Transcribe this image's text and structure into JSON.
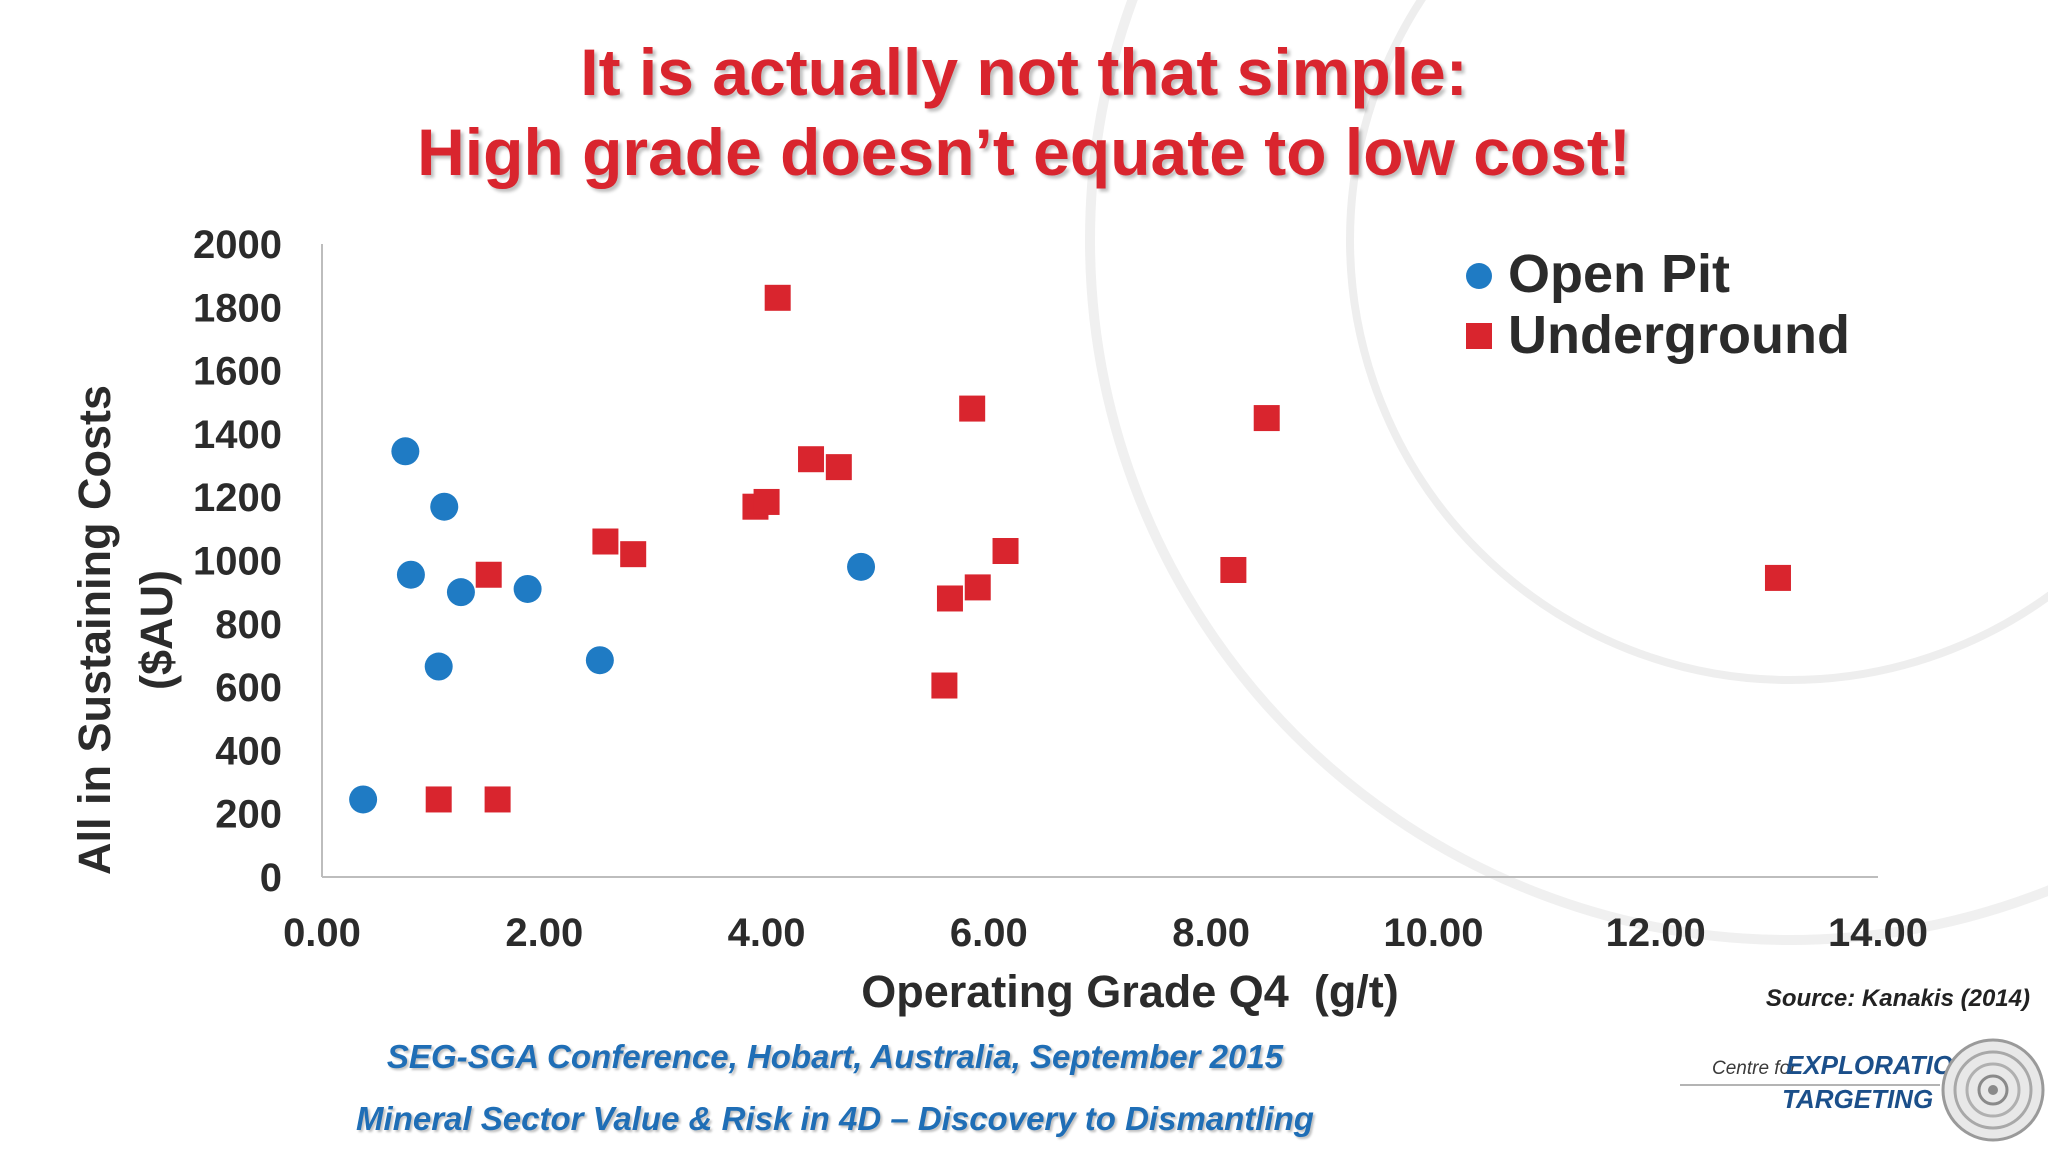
{
  "slide": {
    "title_line1": "It is actually not that simple:",
    "title_line2": "High grade doesn’t equate to low cost!",
    "source": "Source: Kanakis (2014)",
    "footer_line1": "SEG-SGA Conference, Hobart, Australia, September 2015",
    "footer_line2": "Mineral Sector Value & Risk in 4D – Discovery to Dismantling",
    "logo": {
      "centre_for": "Centre for",
      "exploration": "EXPLORATION",
      "targeting": "TARGETING"
    },
    "colors": {
      "title": "#d9252e",
      "footer": "#1f6eb6",
      "open_pit": "#1f7bc4",
      "underground": "#d9252e"
    }
  },
  "chart_data": {
    "type": "scatter",
    "title": "",
    "xlabel": "Operating Grade Q4  (g/t)",
    "ylabel_line1": "All in Sustaining Costs",
    "ylabel_line2": "($AU)",
    "xlim": [
      0,
      14
    ],
    "ylim": [
      0,
      2000
    ],
    "x_ticks": [
      "0.00",
      "2.00",
      "4.00",
      "6.00",
      "8.00",
      "10.00",
      "12.00",
      "14.00"
    ],
    "y_ticks": [
      "0",
      "200",
      "400",
      "600",
      "800",
      "1000",
      "1200",
      "1400",
      "1600",
      "1800",
      "2000"
    ],
    "grid": false,
    "legend_position": "top-right",
    "series": [
      {
        "name": "Open Pit",
        "marker": "circle",
        "color": "#1f7bc4",
        "points": [
          [
            0.37,
            245
          ],
          [
            0.75,
            1345
          ],
          [
            0.8,
            955
          ],
          [
            1.05,
            665
          ],
          [
            1.1,
            1170
          ],
          [
            1.25,
            900
          ],
          [
            1.85,
            910
          ],
          [
            2.5,
            685
          ],
          [
            4.85,
            980
          ]
        ]
      },
      {
        "name": "Underground",
        "marker": "square",
        "color": "#d9252e",
        "points": [
          [
            1.05,
            245
          ],
          [
            1.5,
            955
          ],
          [
            1.58,
            245
          ],
          [
            2.55,
            1060
          ],
          [
            2.8,
            1020
          ],
          [
            3.9,
            1170
          ],
          [
            4.0,
            1185
          ],
          [
            4.1,
            1830
          ],
          [
            4.4,
            1320
          ],
          [
            4.65,
            1295
          ],
          [
            5.6,
            605
          ],
          [
            5.65,
            880
          ],
          [
            5.85,
            1480
          ],
          [
            5.9,
            915
          ],
          [
            6.15,
            1030
          ],
          [
            8.2,
            970
          ],
          [
            8.5,
            1450
          ],
          [
            13.1,
            945
          ]
        ]
      }
    ]
  }
}
